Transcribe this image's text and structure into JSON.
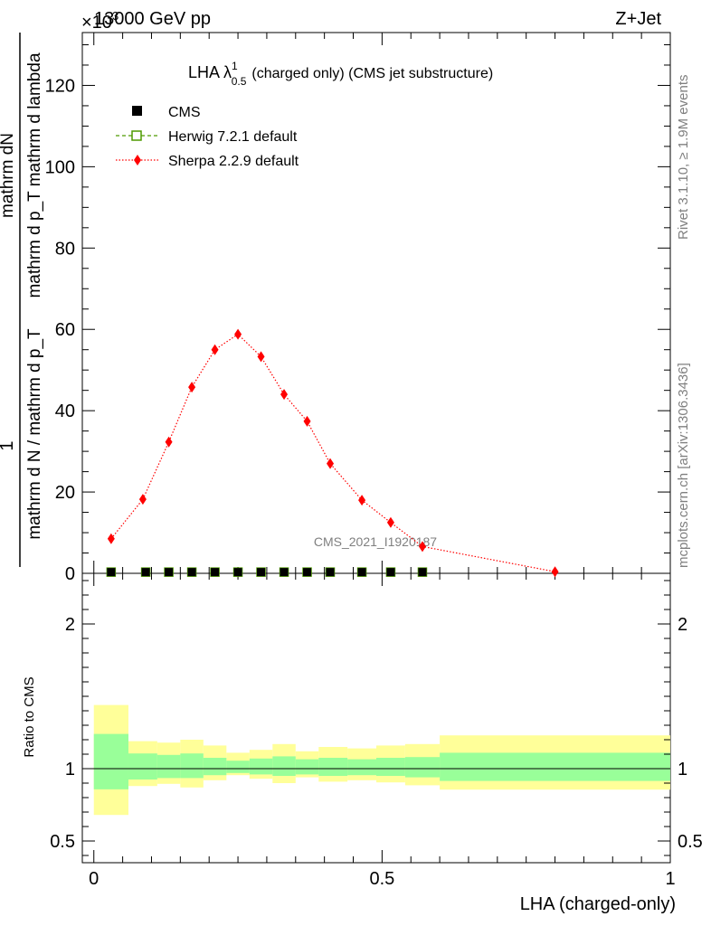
{
  "header": {
    "left": "13000 GeV pp",
    "right": "Z+Jet",
    "multiplier": "×10",
    "multiplier_exp": "3",
    "rivet": "Rivet 3.1.10, ≥ 1.9M events",
    "mcplots": "mcplots.cern.ch [arXiv:1306.3436]",
    "watermark": "CMS_2021_I1920187"
  },
  "chart_data": [
    {
      "type": "scatter",
      "title": "LHA λ",
      "title_sup": "1",
      "title_sub": "0.5",
      "title_rest": "(charged only) (CMS jet substructure)",
      "ylabel_top": "mathrm dN",
      "ylabel_top2": "mathrm d p_T mathrm d lambda",
      "ylabel_one": "1",
      "ylabel_bottom": "mathrm d N / mathrm d p_T",
      "ylim": [
        0,
        133
      ],
      "xlim": [
        -0.02,
        1.0
      ],
      "yticks": [
        0,
        20,
        40,
        60,
        80,
        100,
        120
      ],
      "legend_position": "top-left",
      "series": [
        {
          "name": "CMS",
          "color": "#000000",
          "marker": "square",
          "x": [
            0.03,
            0.09,
            0.13,
            0.17,
            0.21,
            0.25,
            0.29,
            0.33,
            0.37,
            0.41,
            0.465,
            0.515,
            0.57
          ],
          "y": [
            0.3,
            0.3,
            0.3,
            0.3,
            0.3,
            0.3,
            0.3,
            0.3,
            0.3,
            0.3,
            0.3,
            0.3,
            0.3
          ]
        },
        {
          "name": "Herwig 7.2.1 default",
          "color": "#4f9a00",
          "marker": "open-square",
          "x": [
            0.03,
            0.09,
            0.13,
            0.17,
            0.21,
            0.25,
            0.29,
            0.33,
            0.37,
            0.41,
            0.465,
            0.515,
            0.57
          ],
          "y": [
            0.3,
            0.3,
            0.3,
            0.3,
            0.3,
            0.3,
            0.3,
            0.3,
            0.3,
            0.3,
            0.3,
            0.3,
            0.3
          ]
        },
        {
          "name": "Sherpa 2.2.9 default",
          "color": "#ff0000",
          "marker": "diamond",
          "x": [
            0.03,
            0.085,
            0.13,
            0.17,
            0.21,
            0.25,
            0.29,
            0.33,
            0.37,
            0.41,
            0.465,
            0.515,
            0.57,
            0.8
          ],
          "y": [
            8.5,
            18.2,
            32.3,
            45.8,
            55.0,
            58.8,
            53.3,
            44.0,
            37.4,
            27.0,
            18.0,
            12.5,
            6.6,
            0.4
          ]
        }
      ]
    },
    {
      "type": "area",
      "ylabel": "Ratio to CMS",
      "xlabel": "LHA (charged-only)",
      "xlim": [
        -0.02,
        1.0
      ],
      "ylim": [
        0.35,
        2.35
      ],
      "yticks": [
        0.5,
        1,
        2
      ],
      "ytick_labels": [
        "0.5",
        "1",
        "2"
      ],
      "xticks": [
        0,
        0.5,
        1
      ],
      "xtick_labels": [
        "0",
        "0.5",
        "1"
      ],
      "bins": [
        {
          "lo": 0.0,
          "hi": 0.06,
          "inner": [
            0.857,
            1.24
          ],
          "outer": [
            0.68,
            1.44
          ]
        },
        {
          "lo": 0.06,
          "hi": 0.11,
          "inner": [
            0.925,
            1.105
          ],
          "outer": [
            0.88,
            1.19
          ]
        },
        {
          "lo": 0.11,
          "hi": 0.15,
          "inner": [
            0.935,
            1.095
          ],
          "outer": [
            0.895,
            1.18
          ]
        },
        {
          "lo": 0.15,
          "hi": 0.19,
          "inner": [
            0.935,
            1.105
          ],
          "outer": [
            0.87,
            1.2
          ]
        },
        {
          "lo": 0.19,
          "hi": 0.23,
          "inner": [
            0.955,
            1.075
          ],
          "outer": [
            0.92,
            1.16
          ]
        },
        {
          "lo": 0.23,
          "hi": 0.27,
          "inner": [
            0.97,
            1.055
          ],
          "outer": [
            0.955,
            1.11
          ]
        },
        {
          "lo": 0.27,
          "hi": 0.31,
          "inner": [
            0.96,
            1.07
          ],
          "outer": [
            0.93,
            1.13
          ]
        },
        {
          "lo": 0.31,
          "hi": 0.35,
          "inner": [
            0.95,
            1.085
          ],
          "outer": [
            0.9,
            1.17
          ]
        },
        {
          "lo": 0.35,
          "hi": 0.39,
          "inner": [
            0.96,
            1.065
          ],
          "outer": [
            0.94,
            1.12
          ]
        },
        {
          "lo": 0.39,
          "hi": 0.44,
          "inner": [
            0.95,
            1.075
          ],
          "outer": [
            0.91,
            1.15
          ]
        },
        {
          "lo": 0.44,
          "hi": 0.49,
          "inner": [
            0.955,
            1.065
          ],
          "outer": [
            0.92,
            1.14
          ]
        },
        {
          "lo": 0.49,
          "hi": 0.54,
          "inner": [
            0.95,
            1.075
          ],
          "outer": [
            0.905,
            1.16
          ]
        },
        {
          "lo": 0.54,
          "hi": 0.6,
          "inner": [
            0.94,
            1.08
          ],
          "outer": [
            0.885,
            1.17
          ]
        },
        {
          "lo": 0.6,
          "hi": 1.0,
          "inner": [
            0.915,
            1.11
          ],
          "outer": [
            0.855,
            1.23
          ]
        }
      ],
      "reference_line": 1,
      "band_colors": {
        "inner": "#99ff99",
        "outer": "#ffff99"
      }
    }
  ]
}
